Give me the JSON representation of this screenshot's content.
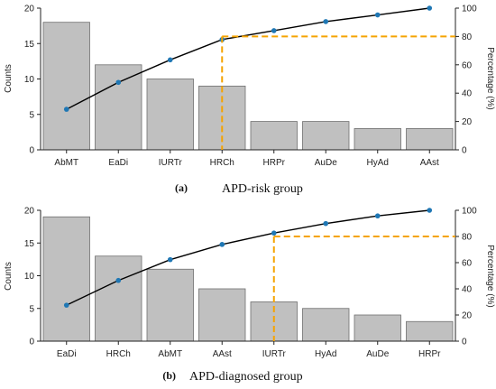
{
  "chart_data": [
    {
      "type": "bar",
      "caption_tag": "(a)",
      "caption": "APD-risk group",
      "categories": [
        "AbMT",
        "EaDi",
        "IURTr",
        "HRCh",
        "HRPr",
        "AuDe",
        "HyAd",
        "AAst"
      ],
      "values": [
        18,
        12,
        10,
        9,
        4,
        4,
        3,
        3
      ],
      "cumulative_percent": [
        28.6,
        47.6,
        63.5,
        77.8,
        84.1,
        90.5,
        95.2,
        100
      ],
      "threshold_percent": 80,
      "threshold_category": "HRCh",
      "ylabel": "Counts",
      "y2label": "Percentage (%)",
      "ylim": [
        0,
        20
      ],
      "yticks": [
        0,
        5,
        10,
        15,
        20
      ],
      "y2lim": [
        0,
        100
      ],
      "y2ticks": [
        0,
        20,
        40,
        60,
        80,
        100
      ],
      "colors": {
        "bar": "#c0c0c0",
        "line": "#000000",
        "point": "#1f77b4",
        "threshold": "#f5a300"
      }
    },
    {
      "type": "bar",
      "caption_tag": "(b)",
      "caption": "APD-diagnosed group",
      "categories": [
        "EaDi",
        "HRCh",
        "AbMT",
        "AAst",
        "IURTr",
        "HyAd",
        "AuDe",
        "HRPr"
      ],
      "values": [
        19,
        13,
        11,
        8,
        6,
        5,
        4,
        3
      ],
      "cumulative_percent": [
        27.5,
        46.4,
        62.3,
        73.9,
        82.6,
        89.9,
        95.7,
        100
      ],
      "threshold_percent": 80,
      "threshold_category": "IURTr",
      "ylabel": "Counts",
      "y2label": "Percentage (%)",
      "ylim": [
        0,
        20
      ],
      "yticks": [
        0,
        5,
        10,
        15,
        20
      ],
      "y2lim": [
        0,
        100
      ],
      "y2ticks": [
        0,
        20,
        40,
        60,
        80,
        100
      ],
      "colors": {
        "bar": "#c0c0c0",
        "line": "#000000",
        "point": "#1f77b4",
        "threshold": "#f5a300"
      }
    }
  ]
}
